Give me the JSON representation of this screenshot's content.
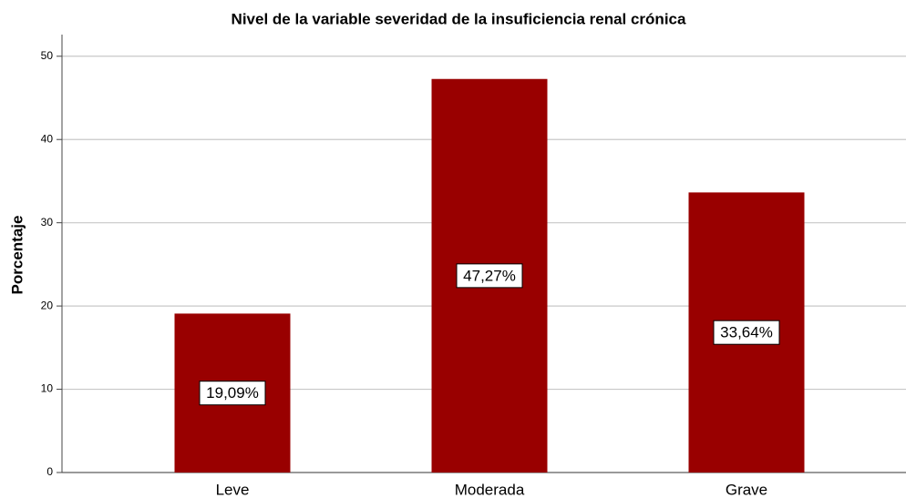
{
  "chart_data": {
    "type": "bar",
    "title": "Nivel de la variable severidad de la insuficiencia renal crónica",
    "y_label": "Porcentaje",
    "categories": [
      "Leve",
      "Moderada",
      "Grave"
    ],
    "values": [
      19.09,
      47.27,
      33.64
    ],
    "value_labels": [
      "19,09%",
      "47,27%",
      "33,64%"
    ],
    "color": "#990000",
    "ylim": [
      0,
      52.6
    ],
    "yticks": [
      0,
      10,
      20,
      30,
      40,
      50
    ],
    "grid": true
  }
}
